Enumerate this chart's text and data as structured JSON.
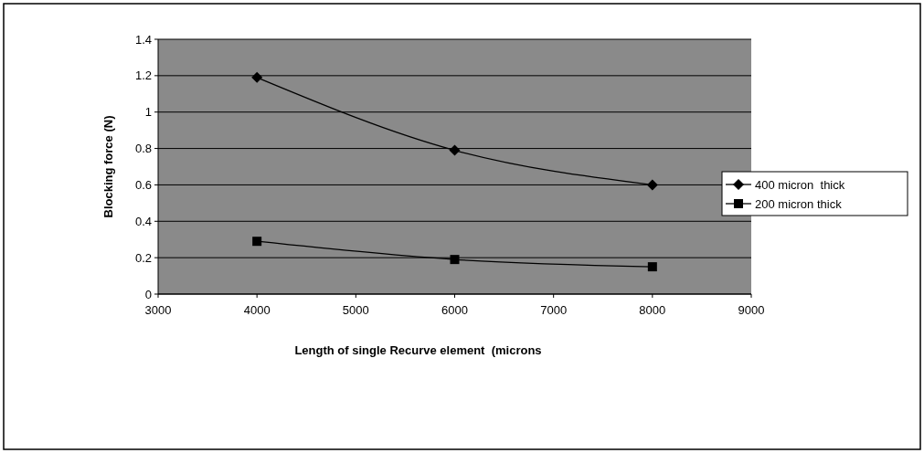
{
  "chart_data": {
    "type": "line",
    "xlabel": "Length of single Recurve element  (microns",
    "ylabel": "Blocking force (N)",
    "x": [
      4000,
      6000,
      8000
    ],
    "series": [
      {
        "name": "400 micron  thick",
        "color": "#000000",
        "marker": "diamond",
        "values": [
          1.19,
          0.79,
          0.6
        ]
      },
      {
        "name": "200 micron thick",
        "color": "#000000",
        "marker": "square",
        "values": [
          0.29,
          0.19,
          0.15
        ]
      }
    ],
    "xlim": [
      3000,
      9000
    ],
    "xticks": [
      3000,
      4000,
      5000,
      6000,
      7000,
      8000,
      9000
    ],
    "ylim": [
      0,
      1.4
    ],
    "yticks": [
      0,
      0.2,
      0.4,
      0.6,
      0.8,
      1,
      1.2,
      1.4
    ],
    "grid": "y",
    "legend": "right",
    "line_style": "solid"
  }
}
